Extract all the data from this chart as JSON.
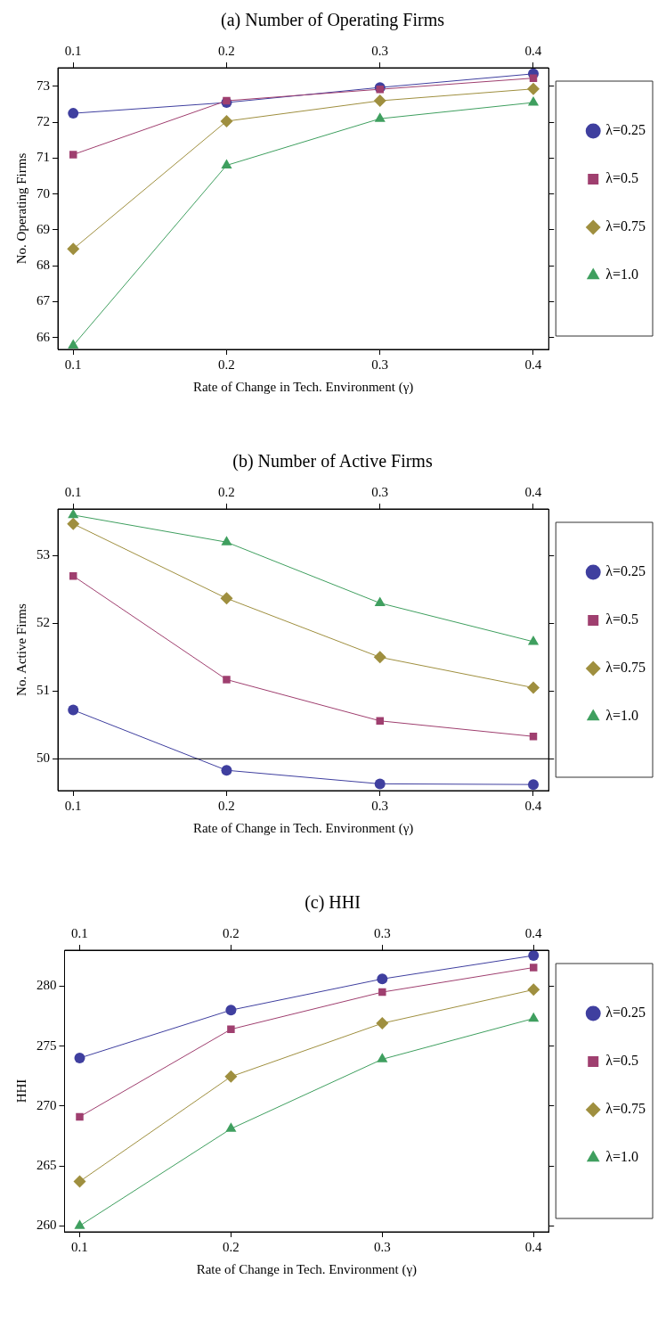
{
  "chart_data": [
    {
      "type": "line",
      "title": "(a) Number of Operating Firms",
      "xlabel": "Rate of Change in Tech. Environment (γ)",
      "ylabel": "No. Operating Firms",
      "x": [
        0.1,
        0.2,
        0.3,
        0.4
      ],
      "xlim": [
        0.09,
        0.41
      ],
      "xticks": [
        0.1,
        0.2,
        0.3,
        0.4
      ],
      "x2lim": [
        0.09,
        0.41
      ],
      "x2ticks": [
        0.1,
        0.2,
        0.3,
        0.4
      ],
      "ylim": [
        65.67,
        73.52
      ],
      "yticks": [
        66,
        67,
        68,
        69,
        70,
        71,
        72,
        73
      ],
      "grid": false,
      "legend": "right",
      "series": [
        {
          "name": "λ=0.25",
          "color": "#3f3f9f",
          "marker": "circle",
          "values": [
            72.25,
            72.55,
            72.97,
            73.35
          ]
        },
        {
          "name": "λ=0.5",
          "color": "#9f3f6f",
          "marker": "square",
          "values": [
            71.1,
            72.6,
            72.92,
            73.23
          ]
        },
        {
          "name": "λ=0.75",
          "color": "#9f8f3f",
          "marker": "diamond",
          "values": [
            68.47,
            72.03,
            72.6,
            72.93
          ]
        },
        {
          "name": "λ=1.0",
          "color": "#3f9f5f",
          "marker": "triangle",
          "values": [
            65.78,
            70.8,
            72.1,
            72.55
          ]
        }
      ]
    },
    {
      "type": "line",
      "title": "(b) Number of Active Firms",
      "xlabel": "Rate of Change in Tech. Environment (γ)",
      "ylabel": "No. Active Firms",
      "x": [
        0.1,
        0.2,
        0.3,
        0.4
      ],
      "xlim": [
        0.09,
        0.41
      ],
      "xticks": [
        0.1,
        0.2,
        0.3,
        0.4
      ],
      "x2lim": [
        0.09,
        0.41
      ],
      "x2ticks": [
        0.1,
        0.2,
        0.3,
        0.4
      ],
      "ylim": [
        49.53,
        53.69
      ],
      "yticks": [
        50,
        51,
        52,
        53
      ],
      "grid": false,
      "legend": "right",
      "ref_lines": [
        {
          "axis": "y",
          "value": 50,
          "color": "#000000"
        }
      ],
      "series": [
        {
          "name": "λ=0.25",
          "color": "#3f3f9f",
          "marker": "circle",
          "values": [
            50.72,
            49.83,
            49.63,
            49.62
          ]
        },
        {
          "name": "λ=0.5",
          "color": "#9f3f6f",
          "marker": "square",
          "values": [
            52.7,
            51.17,
            50.56,
            50.33
          ]
        },
        {
          "name": "λ=0.75",
          "color": "#9f8f3f",
          "marker": "diamond",
          "values": [
            53.47,
            52.37,
            51.5,
            51.05
          ]
        },
        {
          "name": "λ=1.0",
          "color": "#3f9f5f",
          "marker": "triangle",
          "values": [
            53.6,
            53.2,
            52.3,
            51.73
          ]
        }
      ]
    },
    {
      "type": "line",
      "title": "(c) HHI",
      "xlabel": "Rate of Change in Tech. Environment (γ)",
      "ylabel": "HHI",
      "x": [
        0.1,
        0.2,
        0.3,
        0.4
      ],
      "xlim": [
        0.09,
        0.41
      ],
      "xticks": [
        0.1,
        0.2,
        0.3,
        0.4
      ],
      "x2lim": [
        0.09,
        0.41
      ],
      "x2ticks": [
        0.1,
        0.2,
        0.3,
        0.4
      ],
      "ylim": [
        259.5,
        283
      ],
      "yticks": [
        260,
        265,
        270,
        275,
        280
      ],
      "grid": false,
      "legend": "right",
      "series": [
        {
          "name": "λ=0.25",
          "color": "#3f3f9f",
          "marker": "circle",
          "values": [
            274,
            278,
            280.6,
            282.55
          ]
        },
        {
          "name": "λ=0.5",
          "color": "#9f3f6f",
          "marker": "square",
          "values": [
            269.1,
            276.4,
            279.5,
            281.55
          ]
        },
        {
          "name": "λ=0.75",
          "color": "#9f8f3f",
          "marker": "diamond",
          "values": [
            263.7,
            272.45,
            276.9,
            279.7
          ]
        },
        {
          "name": "λ=1.0",
          "color": "#3f9f5f",
          "marker": "triangle",
          "values": [
            260,
            268.1,
            273.9,
            277.3
          ]
        }
      ]
    }
  ]
}
